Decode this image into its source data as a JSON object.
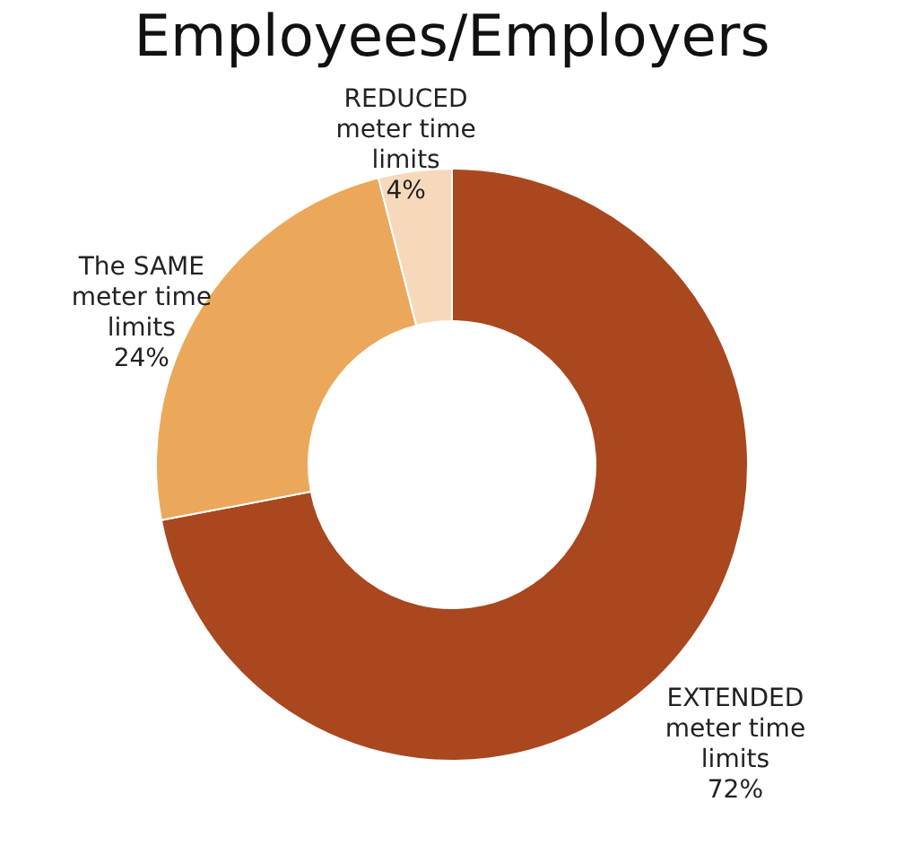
{
  "chart_data": {
    "type": "donut",
    "title": "Employees/Employers",
    "categories": [
      "EXTENDED meter time limits",
      "The SAME meter time limits",
      "REDUCED meter time limits"
    ],
    "values": [
      72,
      24,
      4
    ],
    "value_labels": [
      "72%",
      "24%",
      "4%"
    ],
    "colors": [
      "#a9471f",
      "#eba85a",
      "#f6d9bb"
    ],
    "legend": false
  }
}
